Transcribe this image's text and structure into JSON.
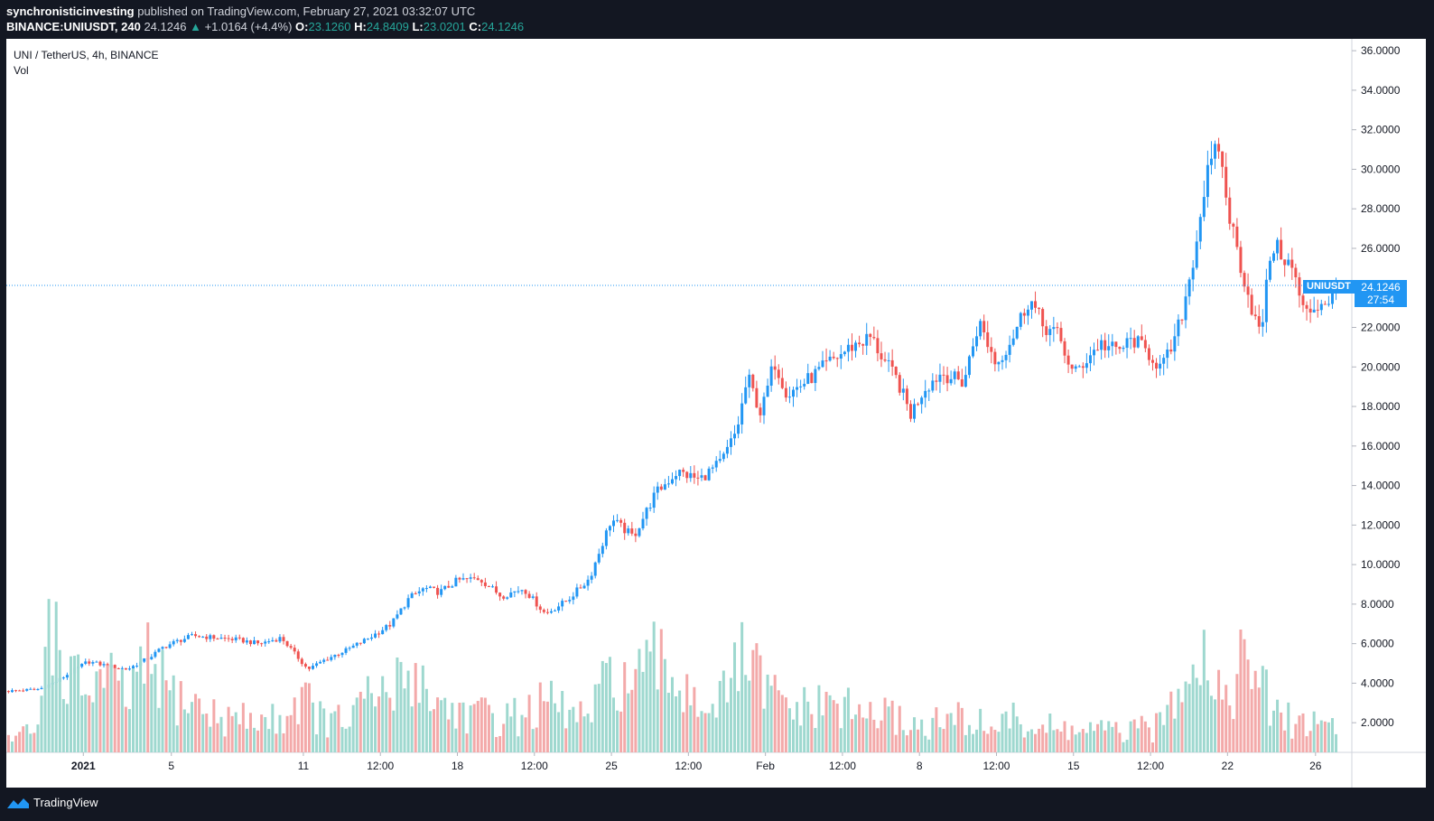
{
  "header": {
    "author": "synchronisticinvesting",
    "published_text": "published on TradingView.com, February 27, 2021 03:32:07 UTC",
    "symbol_full": "BINANCE:UNIUSDT, 240",
    "last_price": "24.1246",
    "change_arrow": "▲",
    "change": "+1.0164 (+4.4%)",
    "o_label": "O:",
    "o_value": "23.1260",
    "h_label": "H:",
    "h_value": "24.8409",
    "l_label": "L:",
    "l_value": "23.0201",
    "c_label": "C:",
    "c_value": "24.1246"
  },
  "legend": {
    "title": "UNI / TetherUS, 4h, BINANCE",
    "volume_label": "Vol"
  },
  "price_tag": {
    "symbol": "UNIUSDT",
    "price": "24.1246",
    "countdown": "27:54"
  },
  "footer": {
    "brand": "TradingView"
  },
  "colors": {
    "up": "#26a69a",
    "up_candle": "#2196f3",
    "down": "#ef5350",
    "vol_up": "#9ed8cf",
    "vol_down": "#f3a9a9",
    "accent": "#2196f3"
  },
  "chart_data": {
    "type": "candlestick",
    "symbol": "UNIUSDT",
    "interval": "4h",
    "y_axis_ticks": [
      "36.0000",
      "34.0000",
      "32.0000",
      "30.0000",
      "28.0000",
      "26.0000",
      "24.0000",
      "22.0000",
      "20.0000",
      "18.0000",
      "16.0000",
      "14.0000",
      "12.0000",
      "10.0000",
      "8.0000",
      "6.0000",
      "4.0000",
      "2.0000"
    ],
    "ylim": [
      0.5,
      36.6
    ],
    "x_axis_ticks": [
      {
        "label": "2021",
        "day": 1
      },
      {
        "label": "5",
        "day": 5
      },
      {
        "label": "11",
        "day": 11
      },
      {
        "label": "12:00",
        "day": 14.5
      },
      {
        "label": "18",
        "day": 18
      },
      {
        "label": "12:00",
        "day": 21.5
      },
      {
        "label": "25",
        "day": 25
      },
      {
        "label": "12:00",
        "day": 28.5
      },
      {
        "label": "Feb",
        "day": 32
      },
      {
        "label": "12:00",
        "day": 35.5
      },
      {
        "label": "8",
        "day": 39
      },
      {
        "label": "12:00",
        "day": 42.5
      },
      {
        "label": "15",
        "day": 46
      },
      {
        "label": "12:00",
        "day": 49.5
      },
      {
        "label": "22",
        "day": 53
      },
      {
        "label": "26",
        "day": 57
      }
    ],
    "xlim_days": [
      -2.5,
      58.65
    ],
    "last_price": 24.1246,
    "close_path": [
      [
        -2.4,
        3.6
      ],
      [
        -1.0,
        3.7
      ],
      [
        -0.2,
        4.1
      ],
      [
        0.5,
        4.6
      ],
      [
        1.2,
        5.1
      ],
      [
        2.0,
        4.9
      ],
      [
        3.0,
        4.7
      ],
      [
        4.0,
        5.3
      ],
      [
        4.6,
        5.8
      ],
      [
        5.2,
        6.1
      ],
      [
        6.0,
        6.4
      ],
      [
        7.0,
        6.3
      ],
      [
        8.0,
        6.2
      ],
      [
        9.0,
        6.0
      ],
      [
        10.0,
        6.3
      ],
      [
        10.6,
        5.5
      ],
      [
        11.2,
        4.7
      ],
      [
        12.0,
        5.2
      ],
      [
        13.0,
        5.7
      ],
      [
        14.0,
        6.3
      ],
      [
        15.0,
        7.0
      ],
      [
        15.8,
        8.3
      ],
      [
        16.5,
        8.8
      ],
      [
        17.2,
        8.6
      ],
      [
        18.0,
        9.2
      ],
      [
        19.0,
        9.3
      ],
      [
        20.0,
        8.4
      ],
      [
        21.0,
        8.8
      ],
      [
        22.0,
        7.5
      ],
      [
        23.0,
        8.2
      ],
      [
        24.0,
        9.3
      ],
      [
        25.0,
        12.3
      ],
      [
        26.0,
        11.4
      ],
      [
        27.0,
        13.6
      ],
      [
        28.0,
        14.7
      ],
      [
        29.0,
        14.3
      ],
      [
        30.0,
        15.2
      ],
      [
        30.7,
        16.8
      ],
      [
        31.2,
        19.5
      ],
      [
        31.8,
        17.6
      ],
      [
        32.4,
        20.3
      ],
      [
        33.0,
        18.6
      ],
      [
        34.0,
        19.4
      ],
      [
        35.0,
        20.3
      ],
      [
        36.0,
        21.1
      ],
      [
        36.8,
        21.5
      ],
      [
        37.4,
        20.3
      ],
      [
        38.0,
        19.3
      ],
      [
        38.6,
        17.6
      ],
      [
        39.2,
        18.9
      ],
      [
        40.0,
        19.7
      ],
      [
        41.0,
        19.2
      ],
      [
        41.7,
        22.3
      ],
      [
        42.5,
        20.1
      ],
      [
        43.3,
        21.7
      ],
      [
        44.0,
        23.5
      ],
      [
        44.6,
        22.1
      ],
      [
        45.3,
        21.6
      ],
      [
        46.0,
        19.6
      ],
      [
        46.6,
        20.4
      ],
      [
        47.2,
        21.2
      ],
      [
        48.0,
        20.8
      ],
      [
        48.7,
        21.4
      ],
      [
        49.5,
        20.6
      ],
      [
        50.0,
        19.9
      ],
      [
        50.6,
        21.3
      ],
      [
        51.0,
        23.0
      ],
      [
        51.5,
        25.8
      ],
      [
        52.0,
        29.4
      ],
      [
        52.6,
        31.2
      ],
      [
        53.0,
        28.1
      ],
      [
        53.5,
        25.6
      ],
      [
        54.0,
        23.4
      ],
      [
        54.5,
        21.5
      ],
      [
        55.0,
        26.2
      ],
      [
        55.5,
        25.7
      ],
      [
        56.0,
        24.8
      ],
      [
        56.5,
        22.6
      ],
      [
        57.0,
        23.1
      ],
      [
        57.6,
        23.4
      ],
      [
        58.0,
        24.12
      ]
    ],
    "volume_path": [
      [
        -2.4,
        1.2
      ],
      [
        -1.0,
        1.6
      ],
      [
        -0.6,
        8.8
      ],
      [
        0.0,
        4.8
      ],
      [
        1.0,
        3.6
      ],
      [
        2.0,
        4.2
      ],
      [
        3.0,
        3.2
      ],
      [
        4.0,
        5.0
      ],
      [
        5.0,
        3.4
      ],
      [
        6.0,
        3.0
      ],
      [
        7.0,
        2.3
      ],
      [
        8.0,
        2.2
      ],
      [
        9.0,
        2.1
      ],
      [
        10.0,
        2.2
      ],
      [
        11.0,
        3.4
      ],
      [
        11.5,
        2.6
      ],
      [
        12.0,
        2.0
      ],
      [
        13.0,
        2.1
      ],
      [
        14.0,
        3.2
      ],
      [
        15.0,
        3.5
      ],
      [
        16.0,
        4.8
      ],
      [
        17.0,
        3.0
      ],
      [
        18.0,
        2.6
      ],
      [
        19.0,
        2.4
      ],
      [
        20.0,
        2.2
      ],
      [
        21.0,
        2.4
      ],
      [
        22.0,
        3.0
      ],
      [
        23.0,
        2.5
      ],
      [
        24.0,
        2.2
      ],
      [
        25.0,
        4.5
      ],
      [
        26.0,
        3.8
      ],
      [
        27.0,
        5.0
      ],
      [
        28.0,
        4.2
      ],
      [
        29.0,
        3.2
      ],
      [
        30.0,
        3.0
      ],
      [
        31.0,
        5.4
      ],
      [
        32.0,
        3.6
      ],
      [
        33.0,
        2.8
      ],
      [
        34.0,
        2.6
      ],
      [
        35.0,
        3.0
      ],
      [
        36.0,
        2.5
      ],
      [
        37.0,
        2.4
      ],
      [
        38.0,
        2.2
      ],
      [
        39.0,
        1.8
      ],
      [
        40.0,
        2.0
      ],
      [
        41.0,
        2.2
      ],
      [
        42.0,
        1.8
      ],
      [
        43.0,
        2.2
      ],
      [
        44.0,
        1.8
      ],
      [
        45.0,
        1.7
      ],
      [
        46.0,
        1.6
      ],
      [
        47.0,
        1.6
      ],
      [
        48.0,
        1.5
      ],
      [
        49.0,
        1.6
      ],
      [
        50.0,
        1.8
      ],
      [
        50.8,
        4.4
      ],
      [
        51.5,
        6.4
      ],
      [
        52.2,
        4.8
      ],
      [
        53.0,
        3.2
      ],
      [
        53.6,
        4.8
      ],
      [
        54.3,
        4.6
      ],
      [
        55.0,
        2.6
      ],
      [
        56.0,
        2.0
      ],
      [
        57.0,
        2.0
      ],
      [
        58.0,
        2.0
      ]
    ]
  }
}
